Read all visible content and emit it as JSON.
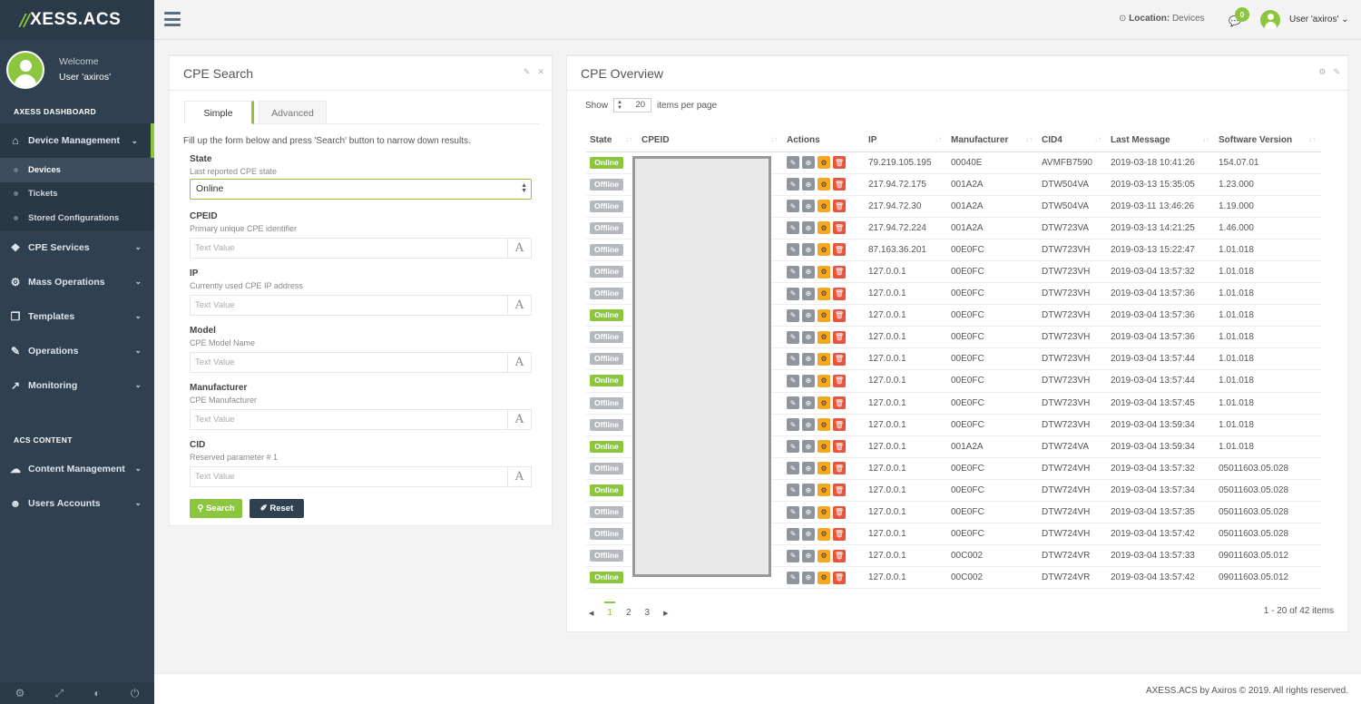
{
  "brand": {
    "mark": "//",
    "name": "XESS.ACS"
  },
  "profile": {
    "welcome": "Welcome",
    "user": "User 'axiros'"
  },
  "sidebar": {
    "header_dashboard": "AXESS DASHBOARD",
    "device_management": "Device Management",
    "sub_items": [
      "Devices",
      "Tickets",
      "Stored Configurations"
    ],
    "items": [
      "CPE Services",
      "Mass Operations",
      "Templates",
      "Operations",
      "Monitoring"
    ],
    "header_content": "ACS CONTENT",
    "content_items": [
      "Content Management",
      "Users Accounts"
    ]
  },
  "topbar": {
    "location_label": "Location:",
    "location_value": "Devices",
    "notifications": "0",
    "user": "User 'axiros'"
  },
  "search": {
    "title": "CPE Search",
    "tab_simple": "Simple",
    "tab_advanced": "Advanced",
    "intro": "Fill up the form below and press 'Search' button to narrow down results.",
    "state_label": "State",
    "state_hint": "Last reported CPE state",
    "state_value": "Online",
    "fields": [
      {
        "label": "CPEID",
        "hint": "Primary unique CPE identifier",
        "placeholder": "Text Value"
      },
      {
        "label": "IP",
        "hint": "Currently used CPE IP address",
        "placeholder": "Text Value"
      },
      {
        "label": "Model",
        "hint": "CPE Model Name",
        "placeholder": "Text Value"
      },
      {
        "label": "Manufacturer",
        "hint": "CPE Manufacturer",
        "placeholder": "Text Value"
      },
      {
        "label": "CID",
        "hint": "Reserved parameter # 1",
        "placeholder": "Text Value"
      }
    ],
    "btn_search": "Search",
    "btn_reset": "Reset"
  },
  "overview": {
    "title": "CPE Overview",
    "show": "Show",
    "per_page": "20",
    "per_page_suffix": "items per page",
    "columns": [
      "State",
      "CPEID",
      "Actions",
      "IP",
      "Manufacturer",
      "CID4",
      "Last Message",
      "Software Version"
    ],
    "rows": [
      {
        "state": "Online",
        "ip": "79.219.105.195",
        "manufacturer": "00040E",
        "cid4": "AVMFB7590",
        "last": "2019-03-18 10:41:26",
        "sw": "154.07.01"
      },
      {
        "state": "Offline",
        "ip": "217.94.72.175",
        "manufacturer": "001A2A",
        "cid4": "DTW504VA",
        "last": "2019-03-13 15:35:05",
        "sw": "1.23.000"
      },
      {
        "state": "Offline",
        "ip": "217.94.72.30",
        "manufacturer": "001A2A",
        "cid4": "DTW504VA",
        "last": "2019-03-11 13:46:26",
        "sw": "1.19.000"
      },
      {
        "state": "Offline",
        "ip": "217.94.72.224",
        "manufacturer": "001A2A",
        "cid4": "DTW723VA",
        "last": "2019-03-13 14:21:25",
        "sw": "1.46.000"
      },
      {
        "state": "Offline",
        "ip": "87.163.36.201",
        "manufacturer": "00E0FC",
        "cid4": "DTW723VH",
        "last": "2019-03-13 15:22:47",
        "sw": "1.01.018"
      },
      {
        "state": "Offline",
        "ip": "127.0.0.1",
        "manufacturer": "00E0FC",
        "cid4": "DTW723VH",
        "last": "2019-03-04 13:57:32",
        "sw": "1.01.018"
      },
      {
        "state": "Offline",
        "ip": "127.0.0.1",
        "manufacturer": "00E0FC",
        "cid4": "DTW723VH",
        "last": "2019-03-04 13:57:36",
        "sw": "1.01.018"
      },
      {
        "state": "Online",
        "ip": "127.0.0.1",
        "manufacturer": "00E0FC",
        "cid4": "DTW723VH",
        "last": "2019-03-04 13:57:36",
        "sw": "1.01.018"
      },
      {
        "state": "Offline",
        "ip": "127.0.0.1",
        "manufacturer": "00E0FC",
        "cid4": "DTW723VH",
        "last": "2019-03-04 13:57:36",
        "sw": "1.01.018"
      },
      {
        "state": "Offline",
        "ip": "127.0.0.1",
        "manufacturer": "00E0FC",
        "cid4": "DTW723VH",
        "last": "2019-03-04 13:57:44",
        "sw": "1.01.018"
      },
      {
        "state": "Online",
        "ip": "127.0.0.1",
        "manufacturer": "00E0FC",
        "cid4": "DTW723VH",
        "last": "2019-03-04 13:57:44",
        "sw": "1.01.018"
      },
      {
        "state": "Offline",
        "ip": "127.0.0.1",
        "manufacturer": "00E0FC",
        "cid4": "DTW723VH",
        "last": "2019-03-04 13:57:45",
        "sw": "1.01.018"
      },
      {
        "state": "Offline",
        "ip": "127.0.0.1",
        "manufacturer": "00E0FC",
        "cid4": "DTW723VH",
        "last": "2019-03-04 13:59:34",
        "sw": "1.01.018"
      },
      {
        "state": "Online",
        "ip": "127.0.0.1",
        "manufacturer": "001A2A",
        "cid4": "DTW724VA",
        "last": "2019-03-04 13:59:34",
        "sw": "1.01.018"
      },
      {
        "state": "Offline",
        "ip": "127.0.0.1",
        "manufacturer": "00E0FC",
        "cid4": "DTW724VH",
        "last": "2019-03-04 13:57:32",
        "sw": "05011603.05.028"
      },
      {
        "state": "Online",
        "ip": "127.0.0.1",
        "manufacturer": "00E0FC",
        "cid4": "DTW724VH",
        "last": "2019-03-04 13:57:34",
        "sw": "05011603.05.028"
      },
      {
        "state": "Offline",
        "ip": "127.0.0.1",
        "manufacturer": "00E0FC",
        "cid4": "DTW724VH",
        "last": "2019-03-04 13:57:35",
        "sw": "05011603.05.028"
      },
      {
        "state": "Offline",
        "ip": "127.0.0.1",
        "manufacturer": "00E0FC",
        "cid4": "DTW724VH",
        "last": "2019-03-04 13:57:42",
        "sw": "05011603.05.028"
      },
      {
        "state": "Offline",
        "ip": "127.0.0.1",
        "manufacturer": "00C002",
        "cid4": "DTW724VR",
        "last": "2019-03-04 13:57:33",
        "sw": "09011603.05.012"
      },
      {
        "state": "Online",
        "ip": "127.0.0.1",
        "manufacturer": "00C002",
        "cid4": "DTW724VR",
        "last": "2019-03-04 13:57:42",
        "sw": "09011603.05.012"
      }
    ],
    "pages": [
      "1",
      "2",
      "3"
    ],
    "current_page": "1",
    "items_info": "1 - 20 of 42 items"
  },
  "footer": {
    "copyright": "AXESS.ACS by Axiros © 2019. All rights reserved."
  },
  "colors": {
    "accent": "#8cc63f",
    "sidebar": "#2f4050",
    "online": "#8cc63f",
    "offline": "#b4b9bf",
    "config": "#f5a623",
    "delete": "#e8553e"
  }
}
